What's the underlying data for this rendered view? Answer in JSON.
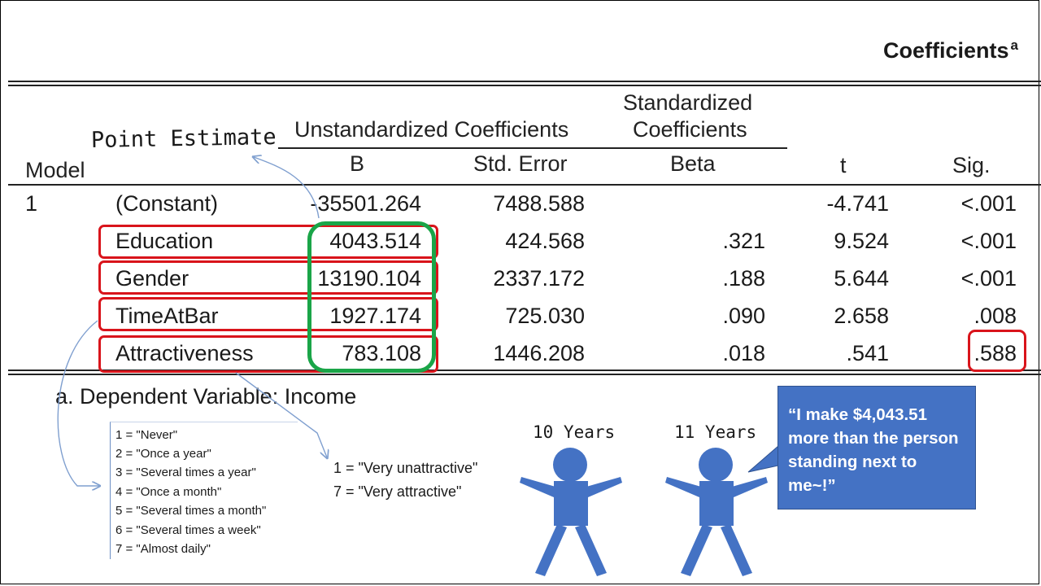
{
  "table": {
    "title": "Coefficients",
    "title_superscript": "a",
    "headers": {
      "model": "Model",
      "unstandardized": "Unstandardized Coefficients",
      "standardized_line1": "Standardized",
      "standardized_line2": "Coefficients",
      "b": "B",
      "std_error": "Std. Error",
      "beta": "Beta",
      "t": "t",
      "sig": "Sig."
    },
    "model_number": "1",
    "rows": [
      {
        "label": "(Constant)",
        "b": "-35501.264",
        "se": "7488.588",
        "beta": "",
        "t": "-4.741",
        "sig": "<.001"
      },
      {
        "label": "Education",
        "b": "4043.514",
        "se": "424.568",
        "beta": ".321",
        "t": "9.524",
        "sig": "<.001"
      },
      {
        "label": "Gender",
        "b": "13190.104",
        "se": "2337.172",
        "beta": ".188",
        "t": "5.644",
        "sig": "<.001"
      },
      {
        "label": "TimeAtBar",
        "b": "1927.174",
        "se": "725.030",
        "beta": ".090",
        "t": "2.658",
        "sig": ".008"
      },
      {
        "label": "Attractiveness",
        "b": "783.108",
        "se": "1446.208",
        "beta": ".018",
        "t": ".541",
        "sig": ".588"
      }
    ],
    "footnote": "a. Dependent Variable: Income"
  },
  "annotations": {
    "point_estimate": "Point Estimate",
    "bar_frequency_codes": [
      "1 = \"Never\"",
      "2 = \"Once a year\"",
      "3 = \"Several times a year\"",
      "4 = \"Once a month\"",
      "5 = \"Several times a month\"",
      "6 = \"Several times a week\"",
      "7 = \"Almost daily\""
    ],
    "attractiveness_codes": [
      "1 = \"Very unattractive\"",
      "7 = \"Very attractive\""
    ],
    "person1_label": "10 Years",
    "person2_label": "11 Years",
    "speech": "“I make $4,043.51 more than the person standing next to me~!”"
  },
  "colors": {
    "highlight_red": "#d9141b",
    "highlight_green": "#1aa548",
    "figure_blue": "#4472c4",
    "arrow_blue": "#7f9fcf"
  }
}
